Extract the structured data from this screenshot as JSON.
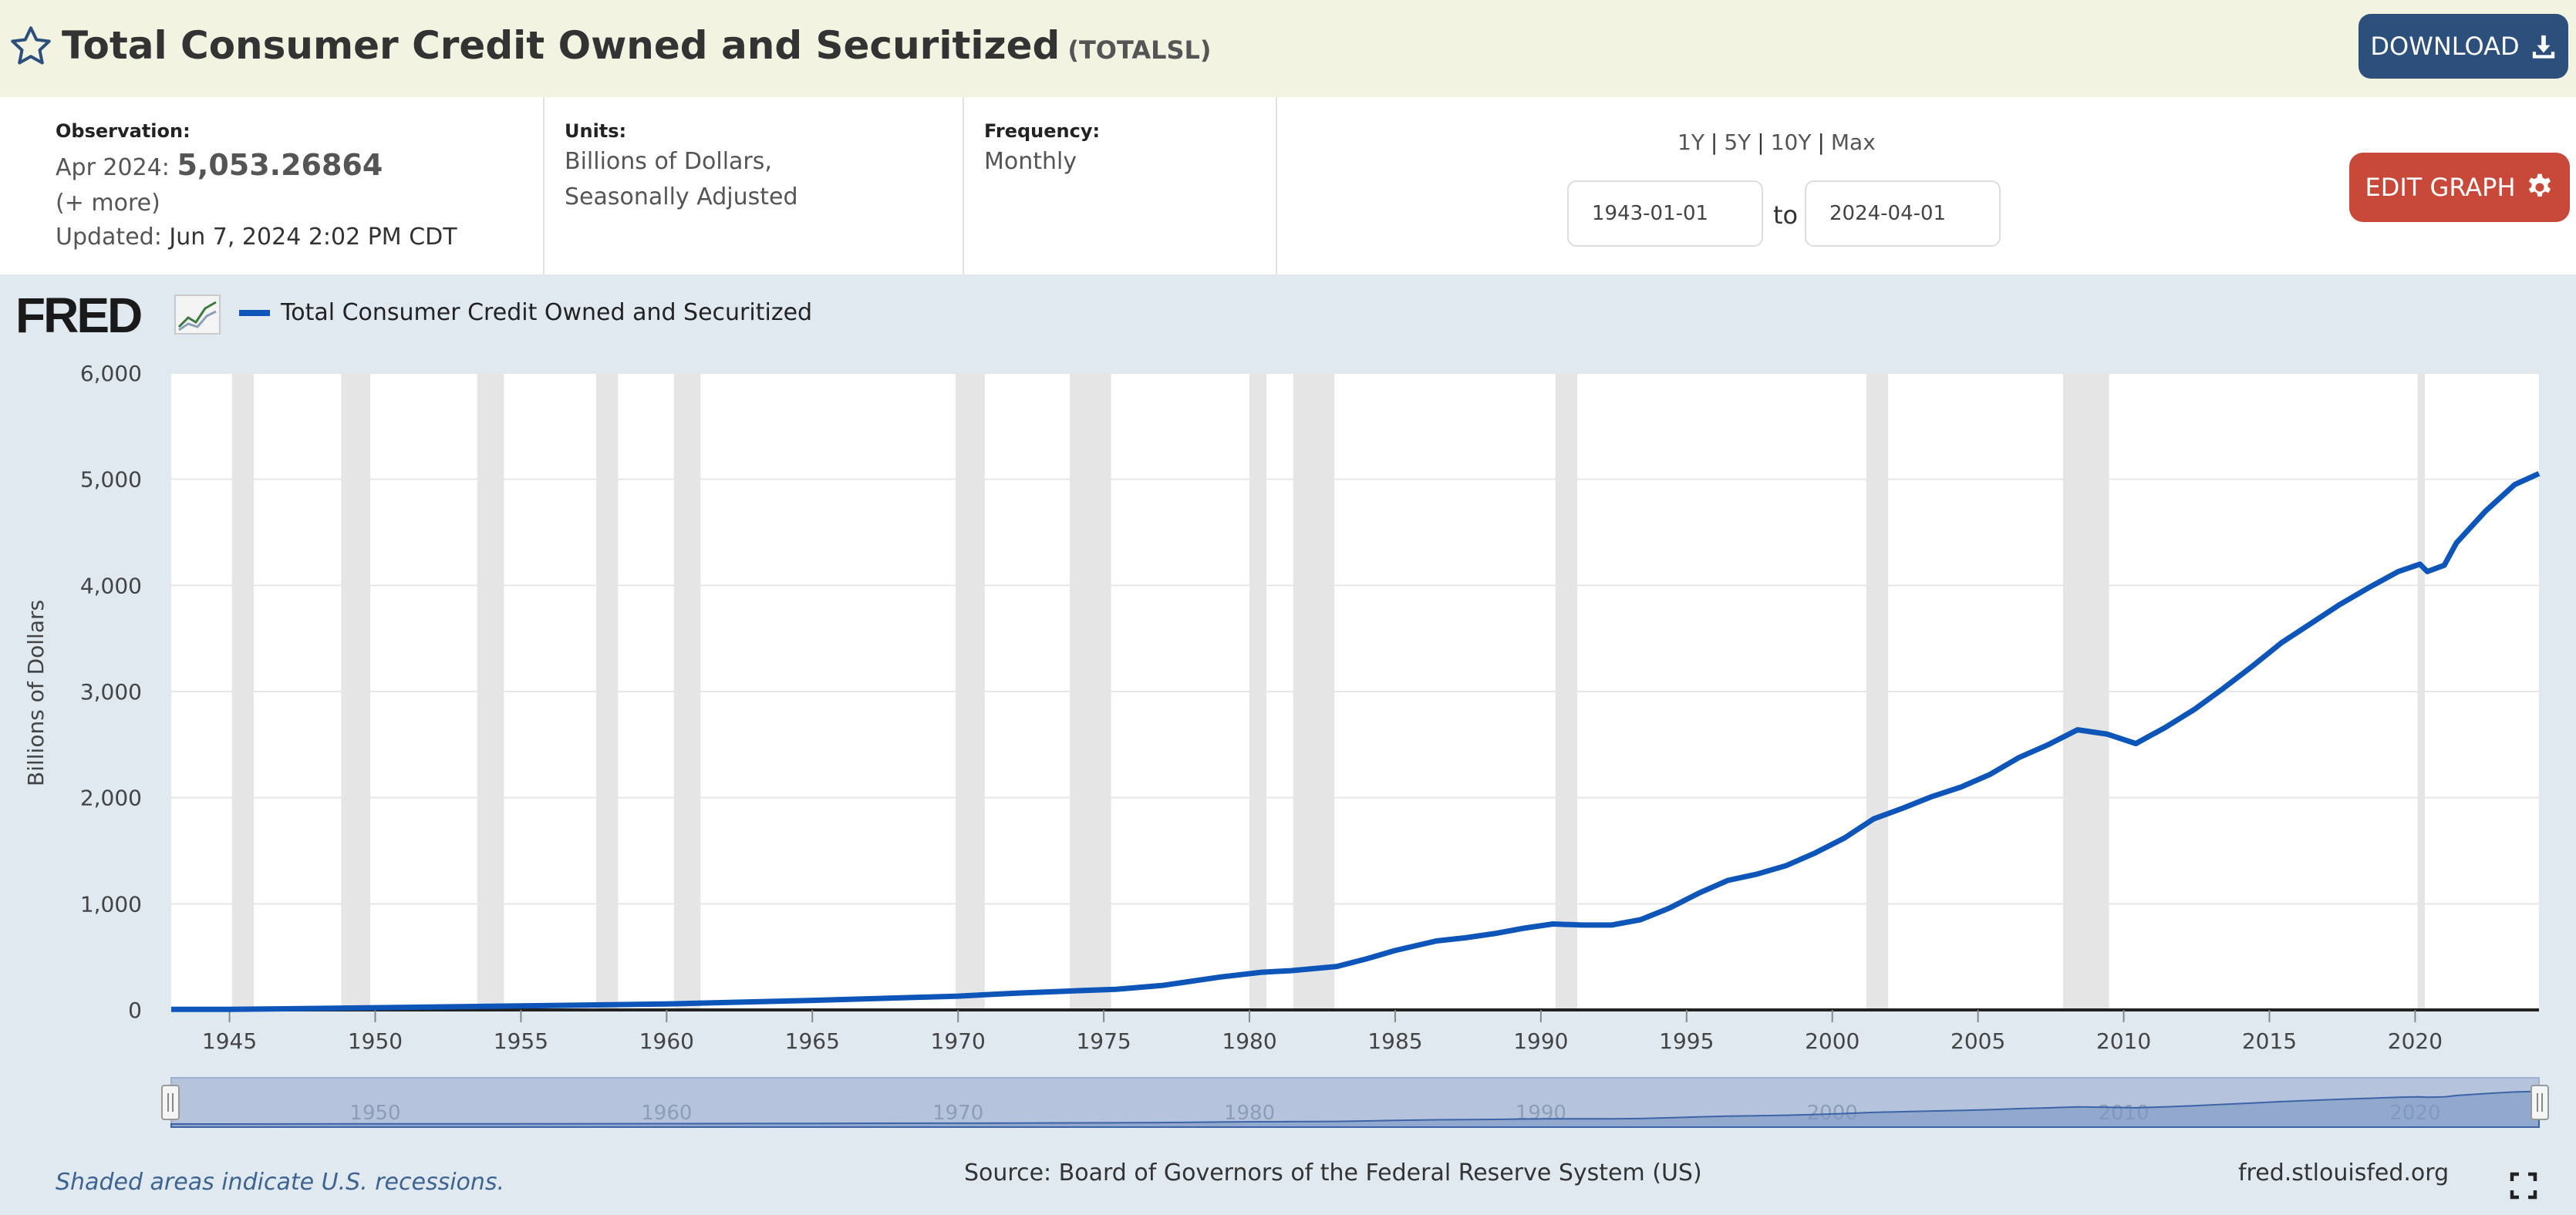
{
  "header": {
    "title": "Total Consumer Credit Owned and Securitized",
    "series_code": "(TOTALSL)",
    "download_label": "DOWNLOAD"
  },
  "info": {
    "observation_label": "Observation:",
    "observation_date": "Apr 2024:",
    "observation_value": "5,053.26864",
    "more_label": "(+ more)",
    "updated_label": "Updated:",
    "updated_value": "Jun 7, 2024 2:02 PM CDT",
    "units_label": "Units:",
    "units_line1": "Billions of Dollars,",
    "units_line2": "Seasonally Adjusted",
    "frequency_label": "Frequency:",
    "frequency_value": "Monthly"
  },
  "range": {
    "links": [
      "1Y",
      "5Y",
      "10Y",
      "Max"
    ],
    "start": "1943-01-01",
    "end": "2024-04-01",
    "to_label": "to",
    "edit_label": "EDIT GRAPH"
  },
  "brand": {
    "logo": "FRED",
    "accent_color": "#0d55b8"
  },
  "footer": {
    "recession_note": "Shaded areas indicate U.S. recessions.",
    "source": "Source: Board of Governors of the Federal Reserve System (US)",
    "site": "fred.stlouisfed.org"
  },
  "chart_data": {
    "type": "line",
    "xlabel": "",
    "ylabel": "Billions of Dollars",
    "xlim": [
      "1943-01-01",
      "2024-04-01"
    ],
    "ylim": [
      0,
      6000
    ],
    "yticks": [
      0,
      1000,
      2000,
      3000,
      4000,
      5000,
      6000
    ],
    "ytick_labels": [
      "0",
      "1,000",
      "2,000",
      "3,000",
      "4,000",
      "5,000",
      "6,000"
    ],
    "xticks": [
      "1945",
      "1950",
      "1955",
      "1960",
      "1965",
      "1970",
      "1975",
      "1980",
      "1985",
      "1990",
      "1995",
      "2000",
      "2005",
      "2010",
      "2015",
      "2020"
    ],
    "navigator_ticks": [
      "1950",
      "1960",
      "1970",
      "1980",
      "1990",
      "2000",
      "2010",
      "2020"
    ],
    "grid": true,
    "legend": "top-left",
    "series": [
      {
        "name": "Total Consumer Credit Owned and Securitized",
        "color": "#0d55b8",
        "points": [
          [
            "1943-01",
            6
          ],
          [
            "1945-01",
            5
          ],
          [
            "1950-01",
            21
          ],
          [
            "1955-01",
            38
          ],
          [
            "1960-01",
            56
          ],
          [
            "1965-01",
            90
          ],
          [
            "1970-01",
            130
          ],
          [
            "1972-01",
            158
          ],
          [
            "1974-01",
            180
          ],
          [
            "1975-06",
            195
          ],
          [
            "1977-01",
            230
          ],
          [
            "1979-01",
            310
          ],
          [
            "1980-06",
            355
          ],
          [
            "1981-06",
            370
          ],
          [
            "1983-01",
            410
          ],
          [
            "1984-01",
            480
          ],
          [
            "1985-01",
            560
          ],
          [
            "1986-06",
            650
          ],
          [
            "1987-06",
            680
          ],
          [
            "1988-06",
            720
          ],
          [
            "1989-06",
            770
          ],
          [
            "1990-06",
            810
          ],
          [
            "1991-06",
            800
          ],
          [
            "1992-06",
            800
          ],
          [
            "1993-06",
            850
          ],
          [
            "1994-06",
            960
          ],
          [
            "1995-06",
            1100
          ],
          [
            "1996-06",
            1220
          ],
          [
            "1997-06",
            1280
          ],
          [
            "1998-06",
            1360
          ],
          [
            "1999-06",
            1480
          ],
          [
            "2000-06",
            1620
          ],
          [
            "2001-06",
            1800
          ],
          [
            "2002-06",
            1900
          ],
          [
            "2003-06",
            2010
          ],
          [
            "2004-06",
            2100
          ],
          [
            "2005-06",
            2220
          ],
          [
            "2006-06",
            2380
          ],
          [
            "2007-06",
            2500
          ],
          [
            "2008-06",
            2640
          ],
          [
            "2009-06",
            2600
          ],
          [
            "2010-06",
            2510
          ],
          [
            "2011-06",
            2660
          ],
          [
            "2012-06",
            2830
          ],
          [
            "2013-06",
            3030
          ],
          [
            "2014-06",
            3240
          ],
          [
            "2015-06",
            3460
          ],
          [
            "2016-06",
            3640
          ],
          [
            "2017-06",
            3820
          ],
          [
            "2018-06",
            3980
          ],
          [
            "2019-06",
            4130
          ],
          [
            "2020-03",
            4200
          ],
          [
            "2020-06",
            4130
          ],
          [
            "2021-01",
            4190
          ],
          [
            "2021-06",
            4400
          ],
          [
            "2022-06",
            4700
          ],
          [
            "2023-06",
            4950
          ],
          [
            "2024-04",
            5053.27
          ]
        ]
      }
    ],
    "recessions": [
      [
        "1945-02",
        "1945-10"
      ],
      [
        "1948-11",
        "1949-10"
      ],
      [
        "1953-07",
        "1954-05"
      ],
      [
        "1957-08",
        "1958-04"
      ],
      [
        "1960-04",
        "1961-02"
      ],
      [
        "1969-12",
        "1970-11"
      ],
      [
        "1973-11",
        "1975-03"
      ],
      [
        "1980-01",
        "1980-07"
      ],
      [
        "1981-07",
        "1982-11"
      ],
      [
        "1990-07",
        "1991-03"
      ],
      [
        "2001-03",
        "2001-11"
      ],
      [
        "2007-12",
        "2009-06"
      ],
      [
        "2020-02",
        "2020-04"
      ]
    ]
  }
}
